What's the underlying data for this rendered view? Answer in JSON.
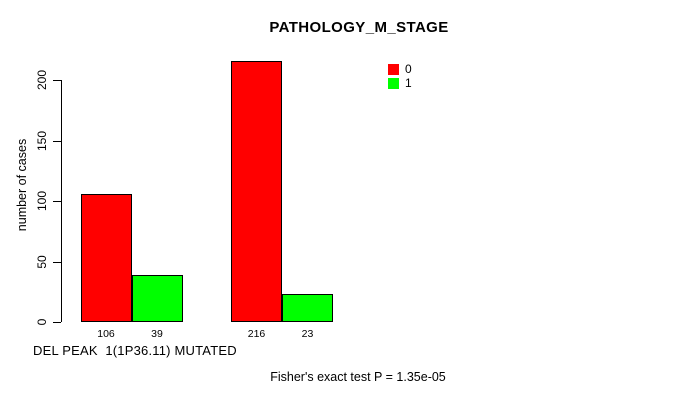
{
  "chart_data": {
    "type": "bar",
    "title": "PATHOLOGY_M_STAGE",
    "xlabel": "DEL PEAK  1(1P36.11) MUTATED",
    "ylabel": "number of cases",
    "ylim": [
      0,
      216
    ],
    "yticks": [
      0,
      50,
      100,
      150,
      200
    ],
    "grid": "off",
    "legend_position": "top-right",
    "categories": [
      "group-1",
      "group-2"
    ],
    "series": [
      {
        "name": "0",
        "color": "#ff0000",
        "values": [
          106,
          216
        ]
      },
      {
        "name": "1",
        "color": "#00ff00",
        "values": [
          39,
          23
        ]
      }
    ],
    "bar_value_labels": [
      "106",
      "39",
      "216",
      "23"
    ],
    "annotation": "Fisher's exact test P = 1.35e-05"
  },
  "colors": {
    "axis": "#000000",
    "text": "#000000",
    "background": "#ffffff"
  }
}
